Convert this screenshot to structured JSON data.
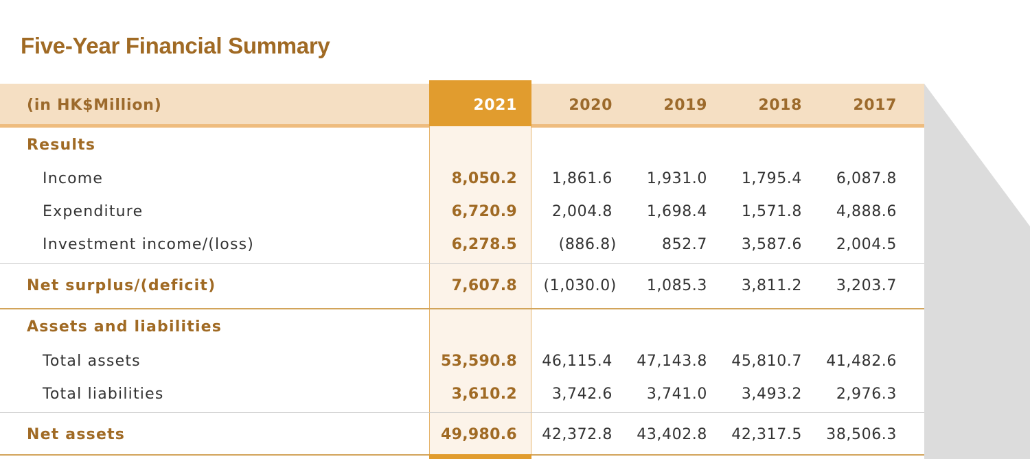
{
  "title": "Five-Year Financial Summary",
  "unit_label": "(in HK$Million)",
  "years": [
    "2021",
    "2020",
    "2019",
    "2018",
    "2017"
  ],
  "sections": [
    {
      "heading": "Results",
      "rows": [
        {
          "label": "Income",
          "values": [
            "8,050.2",
            "1,861.6",
            "1,931.0",
            "1,795.4",
            "6,087.8"
          ]
        },
        {
          "label": "Expenditure",
          "values": [
            "6,720.9",
            "2,004.8",
            "1,698.4",
            "1,571.8",
            "4,888.6"
          ]
        },
        {
          "label": "Investment income/(loss)",
          "values": [
            "6,278.5",
            "(886.8)",
            "852.7",
            "3,587.6",
            "2,004.5"
          ]
        }
      ],
      "total": {
        "label": "Net surplus/(deficit)",
        "values": [
          "7,607.8",
          "(1,030.0)",
          "1,085.3",
          "3,811.2",
          "3,203.7"
        ]
      }
    },
    {
      "heading": "Assets and liabilities",
      "rows": [
        {
          "label": "Total assets",
          "values": [
            "53,590.8",
            "46,115.4",
            "47,143.8",
            "45,810.7",
            "41,482.6"
          ]
        },
        {
          "label": "Total liabilities",
          "values": [
            "3,610.2",
            "3,742.6",
            "3,741.0",
            "3,493.2",
            "2,976.3"
          ]
        }
      ],
      "total": {
        "label": "Net assets",
        "values": [
          "49,980.6",
          "42,372.8",
          "43,402.8",
          "42,317.5",
          "38,506.3"
        ]
      }
    }
  ],
  "colors": {
    "brand_brown": "#a06a24",
    "highlight_orange": "#e19c2e",
    "header_band": "#f5dfc3"
  }
}
